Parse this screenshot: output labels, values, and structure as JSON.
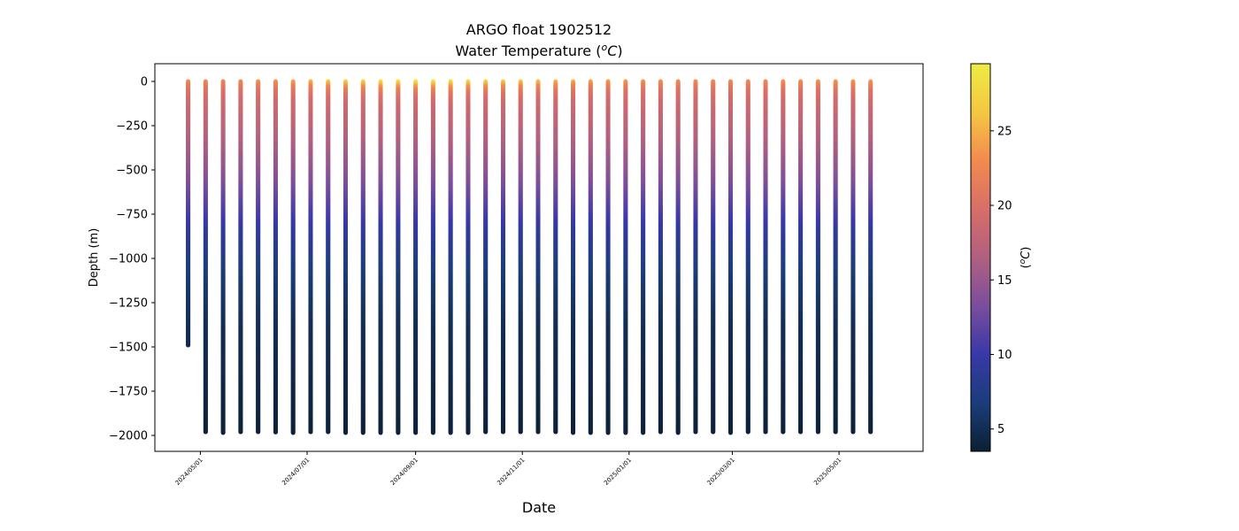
{
  "chart_data": {
    "type": "scatter",
    "title": "ARGO float 1902512",
    "subtitle_prefix": "Water Temperature (",
    "subtitle_unit_sup": "o",
    "subtitle_unit_main": "C",
    "subtitle_suffix": ")",
    "xlabel": "Date",
    "ylabel": "Depth (m)",
    "colorbar_label_prefix": "(",
    "colorbar_label_sup": "o",
    "colorbar_label_main": "C",
    "colorbar_label_suffix": ")",
    "ylim": [
      -2090,
      100
    ],
    "xlim": [
      "2024-04-05",
      "2025-06-18"
    ],
    "yticks": [
      0,
      -250,
      -500,
      -750,
      -1000,
      -1250,
      -1500,
      -1750,
      -2000
    ],
    "ytick_labels": [
      "0",
      "−250",
      "−500",
      "−750",
      "−1000",
      "−1250",
      "−1500",
      "−1750",
      "−2000"
    ],
    "xticks": [
      "2024-05-01",
      "2024-07-01",
      "2024-09-01",
      "2024-11-01",
      "2025-01-01",
      "2025-03-01",
      "2025-05-01"
    ],
    "xtick_labels": [
      "2024/05/01",
      "2024/07/01",
      "2024/09/01",
      "2024/11/01",
      "2025/01/01",
      "2025/03/01",
      "2025/05/01"
    ],
    "color_range": [
      3.5,
      29.5
    ],
    "colorbar_ticks": [
      5,
      10,
      15,
      20,
      25
    ],
    "colorbar_tick_labels": [
      "5",
      "10",
      "15",
      "20",
      "25"
    ],
    "colormap": [
      "#0b1f33",
      "#1b3d7a",
      "#3838a8",
      "#7a4e9c",
      "#b0607f",
      "#d86e68",
      "#f28a4f",
      "#f5c742",
      "#ecec45"
    ],
    "profiles": [
      {
        "date": "2024-04-24",
        "max_depth": -1490,
        "surface_temp": 23.0
      },
      {
        "date": "2024-05-04",
        "max_depth": -1980,
        "surface_temp": 23.0
      },
      {
        "date": "2024-05-14",
        "max_depth": -1985,
        "surface_temp": 22.5
      },
      {
        "date": "2024-05-24",
        "max_depth": -1980,
        "surface_temp": 23.0
      },
      {
        "date": "2024-06-03",
        "max_depth": -1980,
        "surface_temp": 23.5
      },
      {
        "date": "2024-06-13",
        "max_depth": -1982,
        "surface_temp": 23.5
      },
      {
        "date": "2024-06-23",
        "max_depth": -1985,
        "surface_temp": 24.5
      },
      {
        "date": "2024-07-03",
        "max_depth": -1980,
        "surface_temp": 25.5
      },
      {
        "date": "2024-07-13",
        "max_depth": -1980,
        "surface_temp": 26.5
      },
      {
        "date": "2024-07-23",
        "max_depth": -1985,
        "surface_temp": 27.5
      },
      {
        "date": "2024-08-02",
        "max_depth": -1985,
        "surface_temp": 27.5
      },
      {
        "date": "2024-08-12",
        "max_depth": -1985,
        "surface_temp": 28.5
      },
      {
        "date": "2024-08-22",
        "max_depth": -1985,
        "surface_temp": 28.5
      },
      {
        "date": "2024-09-01",
        "max_depth": -1985,
        "surface_temp": 29.0
      },
      {
        "date": "2024-09-11",
        "max_depth": -1985,
        "surface_temp": 29.0
      },
      {
        "date": "2024-09-21",
        "max_depth": -1985,
        "surface_temp": 28.5
      },
      {
        "date": "2024-10-01",
        "max_depth": -1985,
        "surface_temp": 28.0
      },
      {
        "date": "2024-10-11",
        "max_depth": -1980,
        "surface_temp": 27.5
      },
      {
        "date": "2024-10-21",
        "max_depth": -1980,
        "surface_temp": 27.0
      },
      {
        "date": "2024-10-31",
        "max_depth": -1980,
        "surface_temp": 26.5
      },
      {
        "date": "2024-11-10",
        "max_depth": -1980,
        "surface_temp": 26.0
      },
      {
        "date": "2024-11-20",
        "max_depth": -1980,
        "surface_temp": 25.5
      },
      {
        "date": "2024-11-30",
        "max_depth": -1985,
        "surface_temp": 25.0
      },
      {
        "date": "2024-12-10",
        "max_depth": -1985,
        "surface_temp": 24.5
      },
      {
        "date": "2024-12-20",
        "max_depth": -1985,
        "surface_temp": 24.0
      },
      {
        "date": "2024-12-30",
        "max_depth": -1985,
        "surface_temp": 24.0
      },
      {
        "date": "2025-01-09",
        "max_depth": -1985,
        "surface_temp": 23.5
      },
      {
        "date": "2025-01-19",
        "max_depth": -1980,
        "surface_temp": 23.5
      },
      {
        "date": "2025-01-29",
        "max_depth": -1985,
        "surface_temp": 23.0
      },
      {
        "date": "2025-02-08",
        "max_depth": -1980,
        "surface_temp": 23.0
      },
      {
        "date": "2025-02-18",
        "max_depth": -1980,
        "surface_temp": 23.0
      },
      {
        "date": "2025-02-28",
        "max_depth": -1985,
        "surface_temp": 23.0
      },
      {
        "date": "2025-03-10",
        "max_depth": -1980,
        "surface_temp": 23.0
      },
      {
        "date": "2025-03-20",
        "max_depth": -1980,
        "surface_temp": 23.0
      },
      {
        "date": "2025-03-30",
        "max_depth": -1980,
        "surface_temp": 23.5
      },
      {
        "date": "2025-04-09",
        "max_depth": -1980,
        "surface_temp": 23.5
      },
      {
        "date": "2025-04-19",
        "max_depth": -1980,
        "surface_temp": 23.5
      },
      {
        "date": "2025-04-29",
        "max_depth": -1980,
        "surface_temp": 24.0
      },
      {
        "date": "2025-05-09",
        "max_depth": -1980,
        "surface_temp": 24.0
      },
      {
        "date": "2025-05-19",
        "max_depth": -1980,
        "surface_temp": 24.0
      }
    ]
  }
}
